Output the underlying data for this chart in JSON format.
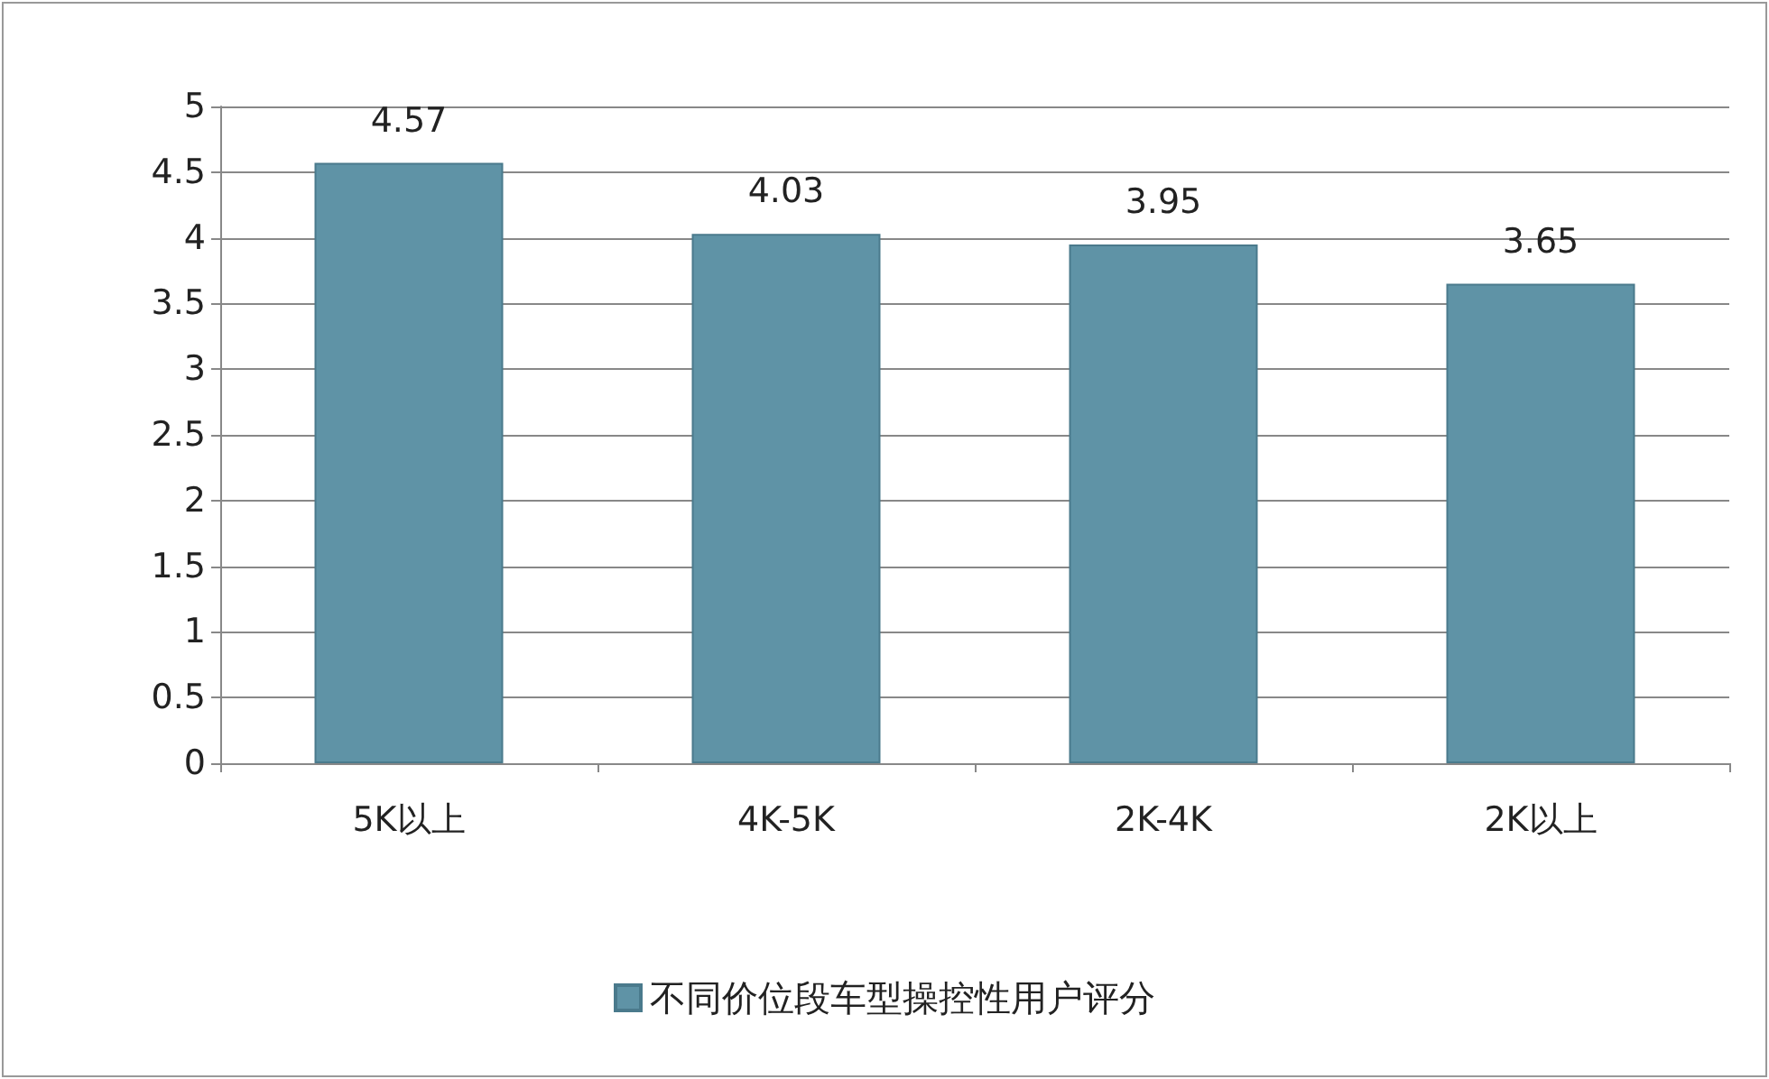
{
  "chart_data": {
    "type": "bar",
    "categories": [
      "5K以上",
      "4K-5K",
      "2K-4K",
      "2K以上"
    ],
    "series": [
      {
        "name": "不同价位段车型操控性用户评分",
        "color": "#5f93a6",
        "values": [
          4.57,
          4.03,
          3.95,
          3.65
        ]
      }
    ],
    "ylim": [
      0,
      5
    ],
    "yticks": [
      0,
      0.5,
      1,
      1.5,
      2,
      2.5,
      3,
      3.5,
      4,
      4.5,
      5
    ],
    "grid": "y",
    "legend": "bottom",
    "data_labels": true
  }
}
